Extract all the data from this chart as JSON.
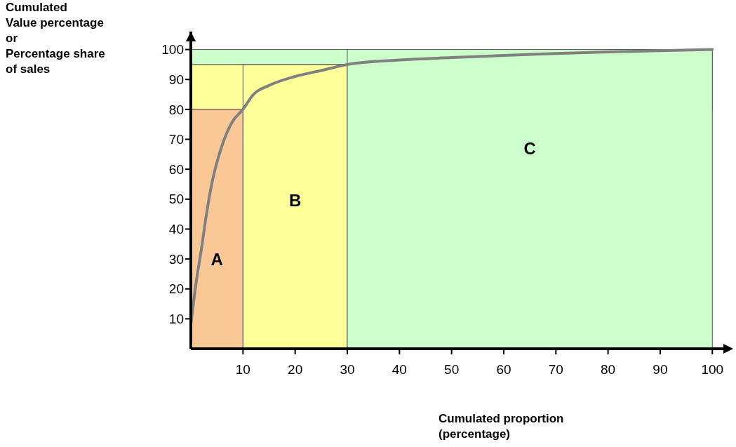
{
  "chart_data": {
    "type": "line",
    "xlabel": "Cumulated proportion\n(percentage)",
    "ylabel": "Cumulated\nValue percentage\nor\nPercentage share\nof sales",
    "series": [
      {
        "color": "#808080",
        "x": [
          0,
          1,
          2,
          3,
          4,
          6,
          8,
          10,
          12,
          15,
          20,
          25,
          30,
          40,
          50,
          60,
          70,
          80,
          90,
          100
        ],
        "values": [
          8,
          22,
          33,
          45,
          55,
          68,
          76,
          80,
          85,
          88,
          91,
          93,
          95,
          96.5,
          97.3,
          98,
          98.7,
          99.2,
          99.6,
          100
        ]
      }
    ],
    "bands": [
      {
        "axis": "y",
        "from": 95,
        "to": 100,
        "color": "#ccffcc"
      },
      {
        "axis": "y",
        "from": 80,
        "to": 95,
        "color": "#ffff99"
      },
      {
        "axis": "x",
        "from": 0,
        "to": 10,
        "label": "A",
        "color": "#fac896"
      },
      {
        "axis": "x",
        "from": 10,
        "to": 30,
        "label": "B",
        "color": "#ffff99"
      },
      {
        "axis": "x",
        "from": 30,
        "to": 100,
        "label": "C",
        "color": "#ccffcc"
      }
    ],
    "xlim": [
      0,
      104
    ],
    "ylim": [
      0,
      106
    ],
    "xticks": [
      10,
      20,
      30,
      40,
      50,
      60,
      70,
      80,
      90,
      100
    ],
    "yticks": [
      10,
      20,
      30,
      40,
      50,
      60,
      70,
      80,
      90,
      100
    ],
    "grid": false
  }
}
